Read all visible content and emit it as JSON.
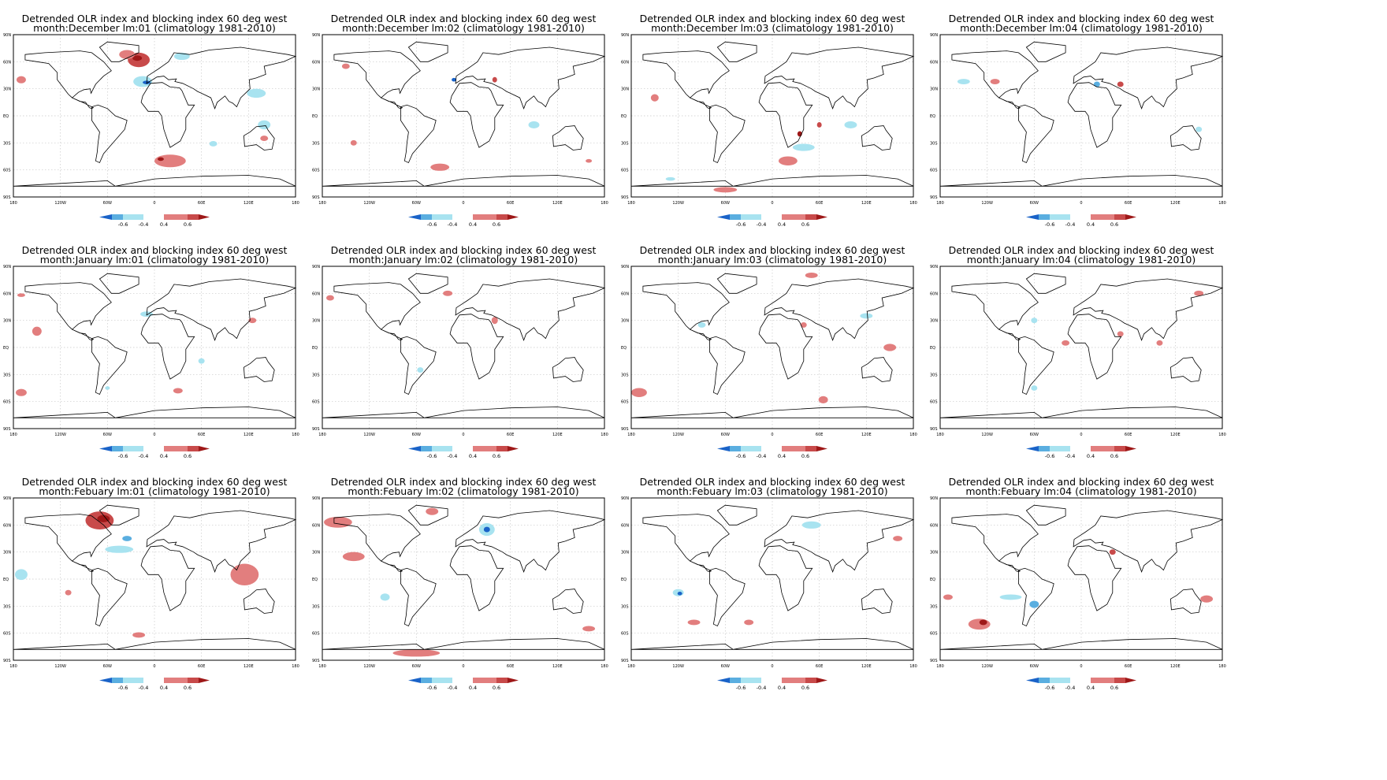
{
  "title_line1": "Detrended OLR index and blocking index 60 deg west",
  "climatology": "(climatology 1981-2010)",
  "lat_labels": [
    "90N",
    "60N",
    "30N",
    "EQ",
    "30S",
    "60S",
    "90S"
  ],
  "lon_labels": [
    "180",
    "120W",
    "60W",
    "0",
    "60E",
    "120E",
    "180"
  ],
  "legend_labels": [
    "-0.6",
    "-0.4",
    "0.4",
    "0.6"
  ],
  "colors": {
    "neg_weak": "#a8e3f0",
    "neg_mid": "#5aaee0",
    "neg_strong": "#1a63c8",
    "pos_weak": "#e27e7e",
    "pos_mid": "#c84a4a",
    "pos_strong": "#9e1818",
    "coast": "#000000",
    "grid": "#c8c8c8"
  },
  "panels": [
    {
      "subtitle": "month:December lm:01 (climatology 1981-2010)"
    },
    {
      "subtitle": "month:December lm:02 (climatology 1981-2010)"
    },
    {
      "subtitle": "month:December lm:03 (climatology 1981-2010)"
    },
    {
      "subtitle": "month:December lm:04 (climatology 1981-2010)"
    },
    {
      "subtitle": "month:January lm:01 (climatology 1981-2010)"
    },
    {
      "subtitle": "month:January lm:02 (climatology 1981-2010)"
    },
    {
      "subtitle": "month:January lm:03 (climatology 1981-2010)"
    },
    {
      "subtitle": "month:January lm:04 (climatology 1981-2010)"
    },
    {
      "subtitle": "month:Febuary lm:01 (climatology 1981-2010)"
    },
    {
      "subtitle": "month:Febuary lm:02 (climatology 1981-2010)"
    },
    {
      "subtitle": "month:Febuary lm:03 (climatology 1981-2010)"
    },
    {
      "subtitle": "month:Febuary lm:04 (climatology 1981-2010)"
    }
  ],
  "anomalies": [
    [
      {
        "lon": -20,
        "lat": 62,
        "rx": 14,
        "ry": 8,
        "level": "pos_mid"
      },
      {
        "lon": -22,
        "lat": 64,
        "rx": 6,
        "ry": 3,
        "level": "pos_strong"
      },
      {
        "lon": -35,
        "lat": 68,
        "rx": 10,
        "ry": 5,
        "level": "pos_weak"
      },
      {
        "lon": -15,
        "lat": 38,
        "rx": 12,
        "ry": 6,
        "level": "neg_weak"
      },
      {
        "lon": -10,
        "lat": 37,
        "rx": 5,
        "ry": 2,
        "level": "neg_strong"
      },
      {
        "lon": 35,
        "lat": 66,
        "rx": 10,
        "ry": 4,
        "level": "neg_weak"
      },
      {
        "lon": 20,
        "lat": -50,
        "rx": 20,
        "ry": 7,
        "level": "pos_weak"
      },
      {
        "lon": 8,
        "lat": -48,
        "rx": 4,
        "ry": 2,
        "level": "pos_strong"
      },
      {
        "lon": -170,
        "lat": 40,
        "rx": 6,
        "ry": 4,
        "level": "pos_weak"
      },
      {
        "lon": 130,
        "lat": 25,
        "rx": 12,
        "ry": 5,
        "level": "neg_weak"
      },
      {
        "lon": 140,
        "lat": -10,
        "rx": 8,
        "ry": 5,
        "level": "neg_weak"
      },
      {
        "lon": 75,
        "lat": -31,
        "rx": 5,
        "ry": 3,
        "level": "neg_weak"
      },
      {
        "lon": 140,
        "lat": -25,
        "rx": 5,
        "ry": 3,
        "level": "pos_weak"
      }
    ],
    [
      {
        "lon": -150,
        "lat": 55,
        "rx": 5,
        "ry": 3,
        "level": "pos_weak"
      },
      {
        "lon": -140,
        "lat": -30,
        "rx": 4,
        "ry": 3,
        "level": "pos_weak"
      },
      {
        "lon": 90,
        "lat": -10,
        "rx": 7,
        "ry": 4,
        "level": "neg_weak"
      },
      {
        "lon": -30,
        "lat": -57,
        "rx": 12,
        "ry": 4,
        "level": "pos_weak"
      },
      {
        "lon": 40,
        "lat": 40,
        "rx": 3,
        "ry": 3,
        "level": "pos_mid"
      },
      {
        "lon": -12,
        "lat": 40,
        "rx": 3,
        "ry": 2,
        "level": "neg_strong"
      },
      {
        "lon": 160,
        "lat": -50,
        "rx": 4,
        "ry": 2,
        "level": "pos_weak"
      }
    ],
    [
      {
        "lon": -150,
        "lat": 20,
        "rx": 5,
        "ry": 4,
        "level": "pos_weak"
      },
      {
        "lon": 40,
        "lat": -35,
        "rx": 14,
        "ry": 4,
        "level": "neg_weak"
      },
      {
        "lon": 20,
        "lat": -50,
        "rx": 12,
        "ry": 5,
        "level": "pos_weak"
      },
      {
        "lon": 35,
        "lat": -20,
        "rx": 3,
        "ry": 3,
        "level": "pos_strong"
      },
      {
        "lon": 60,
        "lat": -10,
        "rx": 3,
        "ry": 3,
        "level": "pos_mid"
      },
      {
        "lon": 100,
        "lat": -10,
        "rx": 8,
        "ry": 4,
        "level": "neg_weak"
      },
      {
        "lon": -60,
        "lat": -82,
        "rx": 15,
        "ry": 3,
        "level": "pos_weak"
      },
      {
        "lon": -130,
        "lat": -70,
        "rx": 6,
        "ry": 2,
        "level": "neg_weak"
      }
    ],
    [
      {
        "lon": -110,
        "lat": 38,
        "rx": 6,
        "ry": 3,
        "level": "pos_weak"
      },
      {
        "lon": -150,
        "lat": 38,
        "rx": 8,
        "ry": 3,
        "level": "neg_weak"
      },
      {
        "lon": 20,
        "lat": 35,
        "rx": 4,
        "ry": 3,
        "level": "neg_mid"
      },
      {
        "lon": 50,
        "lat": 35,
        "rx": 4,
        "ry": 3,
        "level": "pos_mid"
      },
      {
        "lon": 150,
        "lat": -15,
        "rx": 4,
        "ry": 3,
        "level": "neg_weak"
      }
    ],
    [
      {
        "lon": -150,
        "lat": 18,
        "rx": 6,
        "ry": 5,
        "level": "pos_weak"
      },
      {
        "lon": -10,
        "lat": 37,
        "rx": 8,
        "ry": 3,
        "level": "neg_weak"
      },
      {
        "lon": -170,
        "lat": -50,
        "rx": 7,
        "ry": 4,
        "level": "pos_weak"
      },
      {
        "lon": 30,
        "lat": -48,
        "rx": 6,
        "ry": 3,
        "level": "pos_weak"
      },
      {
        "lon": 125,
        "lat": 30,
        "rx": 5,
        "ry": 3,
        "level": "pos_weak"
      },
      {
        "lon": -170,
        "lat": 58,
        "rx": 5,
        "ry": 2,
        "level": "pos_weak"
      },
      {
        "lon": 60,
        "lat": -15,
        "rx": 4,
        "ry": 3,
        "level": "neg_weak"
      },
      {
        "lon": -60,
        "lat": -45,
        "rx": 3,
        "ry": 2,
        "level": "neg_weak"
      }
    ],
    [
      {
        "lon": -20,
        "lat": 60,
        "rx": 6,
        "ry": 3,
        "level": "pos_weak"
      },
      {
        "lon": 40,
        "lat": 30,
        "rx": 4,
        "ry": 4,
        "level": "pos_weak"
      },
      {
        "lon": -170,
        "lat": 55,
        "rx": 5,
        "ry": 3,
        "level": "pos_weak"
      },
      {
        "lon": -55,
        "lat": -25,
        "rx": 4,
        "ry": 3,
        "level": "neg_weak"
      }
    ],
    [
      {
        "lon": -170,
        "lat": -50,
        "rx": 10,
        "ry": 5,
        "level": "pos_weak"
      },
      {
        "lon": 65,
        "lat": -58,
        "rx": 6,
        "ry": 4,
        "level": "pos_weak"
      },
      {
        "lon": 40,
        "lat": 25,
        "rx": 4,
        "ry": 3,
        "level": "pos_weak"
      },
      {
        "lon": 50,
        "lat": 80,
        "rx": 8,
        "ry": 3,
        "level": "pos_weak"
      },
      {
        "lon": 120,
        "lat": 35,
        "rx": 8,
        "ry": 3,
        "level": "neg_weak"
      },
      {
        "lon": -90,
        "lat": 25,
        "rx": 5,
        "ry": 3,
        "level": "neg_weak"
      },
      {
        "lon": 150,
        "lat": 0,
        "rx": 8,
        "ry": 4,
        "level": "pos_weak"
      }
    ],
    [
      {
        "lon": -60,
        "lat": 30,
        "rx": 4,
        "ry": 3,
        "level": "neg_weak"
      },
      {
        "lon": -20,
        "lat": 5,
        "rx": 5,
        "ry": 3,
        "level": "pos_weak"
      },
      {
        "lon": 50,
        "lat": 15,
        "rx": 4,
        "ry": 3,
        "level": "pos_weak"
      },
      {
        "lon": 100,
        "lat": 5,
        "rx": 4,
        "ry": 3,
        "level": "pos_weak"
      },
      {
        "lon": 150,
        "lat": 60,
        "rx": 6,
        "ry": 3,
        "level": "pos_weak"
      },
      {
        "lon": -60,
        "lat": -45,
        "rx": 4,
        "ry": 3,
        "level": "neg_weak"
      }
    ],
    [
      {
        "lon": -70,
        "lat": 65,
        "rx": 18,
        "ry": 10,
        "level": "pos_mid"
      },
      {
        "lon": -65,
        "lat": 67,
        "rx": 8,
        "ry": 4,
        "level": "pos_strong"
      },
      {
        "lon": -35,
        "lat": 45,
        "rx": 6,
        "ry": 3,
        "level": "neg_mid"
      },
      {
        "lon": -170,
        "lat": 5,
        "rx": 8,
        "ry": 6,
        "level": "neg_weak"
      },
      {
        "lon": 115,
        "lat": 5,
        "rx": 18,
        "ry": 12,
        "level": "pos_weak"
      },
      {
        "lon": -45,
        "lat": 33,
        "rx": 18,
        "ry": 4,
        "level": "neg_weak"
      },
      {
        "lon": -110,
        "lat": -15,
        "rx": 4,
        "ry": 3,
        "level": "pos_weak"
      },
      {
        "lon": -20,
        "lat": -62,
        "rx": 8,
        "ry": 3,
        "level": "pos_weak"
      }
    ],
    [
      {
        "lon": -160,
        "lat": 63,
        "rx": 18,
        "ry": 6,
        "level": "pos_weak"
      },
      {
        "lon": -140,
        "lat": 25,
        "rx": 14,
        "ry": 5,
        "level": "pos_weak"
      },
      {
        "lon": -40,
        "lat": 75,
        "rx": 8,
        "ry": 4,
        "level": "pos_weak"
      },
      {
        "lon": 30,
        "lat": 55,
        "rx": 10,
        "ry": 7,
        "level": "neg_weak"
      },
      {
        "lon": 30,
        "lat": 55,
        "rx": 4,
        "ry": 3,
        "level": "neg_strong"
      },
      {
        "lon": -60,
        "lat": -82,
        "rx": 30,
        "ry": 4,
        "level": "pos_weak"
      },
      {
        "lon": -100,
        "lat": -20,
        "rx": 6,
        "ry": 4,
        "level": "neg_weak"
      },
      {
        "lon": 160,
        "lat": -55,
        "rx": 8,
        "ry": 3,
        "level": "pos_weak"
      }
    ],
    [
      {
        "lon": -120,
        "lat": -15,
        "rx": 7,
        "ry": 4,
        "level": "neg_weak"
      },
      {
        "lon": -118,
        "lat": -16,
        "rx": 3,
        "ry": 2,
        "level": "neg_strong"
      },
      {
        "lon": 50,
        "lat": 60,
        "rx": 12,
        "ry": 4,
        "level": "neg_weak"
      },
      {
        "lon": 160,
        "lat": 45,
        "rx": 6,
        "ry": 3,
        "level": "pos_weak"
      },
      {
        "lon": -100,
        "lat": -48,
        "rx": 8,
        "ry": 3,
        "level": "pos_weak"
      },
      {
        "lon": -30,
        "lat": -48,
        "rx": 6,
        "ry": 3,
        "level": "pos_weak"
      }
    ],
    [
      {
        "lon": -130,
        "lat": -50,
        "rx": 14,
        "ry": 6,
        "level": "pos_weak"
      },
      {
        "lon": -125,
        "lat": -48,
        "rx": 5,
        "ry": 3,
        "level": "pos_strong"
      },
      {
        "lon": -60,
        "lat": -28,
        "rx": 6,
        "ry": 4,
        "level": "neg_mid"
      },
      {
        "lon": 160,
        "lat": -22,
        "rx": 8,
        "ry": 4,
        "level": "pos_weak"
      },
      {
        "lon": -170,
        "lat": -20,
        "rx": 6,
        "ry": 3,
        "level": "pos_weak"
      },
      {
        "lon": -90,
        "lat": -20,
        "rx": 14,
        "ry": 3,
        "level": "neg_weak"
      },
      {
        "lon": 40,
        "lat": 30,
        "rx": 4,
        "ry": 3,
        "level": "pos_mid"
      }
    ]
  ]
}
